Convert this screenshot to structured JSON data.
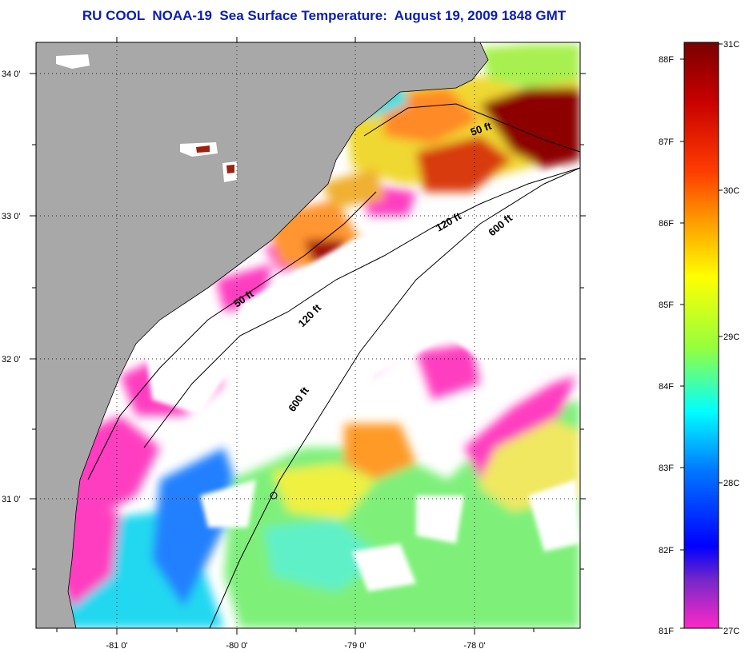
{
  "title": "RU COOL  NOAA-19  Sea Surface Temperature:  August 19, 2009 1848 GMT",
  "map": {
    "lat_labels": [
      "34 0'",
      "33 0'",
      "32 0'",
      "31 0'"
    ],
    "lon_labels": [
      "-81 0'",
      "-80 0'",
      "-79 0'",
      "-78 0'"
    ],
    "contour_labels": [
      "50 ft",
      "120 ft",
      "600 ft",
      "50 ft",
      "120 ft",
      "600 ft"
    ],
    "colors": {
      "land": "#a8a8a8",
      "cloud": "#ffffff",
      "warmest": "#8c0000",
      "coolest": "#ff3cc8"
    }
  },
  "colorbar": {
    "fahrenheit_labels": [
      "88F",
      "87F",
      "86F",
      "85F",
      "84F",
      "83F",
      "82F",
      "81F"
    ],
    "celsius_labels": [
      "31C",
      "30C",
      "29C",
      "28C",
      "27C"
    ],
    "stops": [
      "#7a0000",
      "#c80000",
      "#ff3c00",
      "#ff9600",
      "#ffff00",
      "#96ff3c",
      "#00ffff",
      "#0078ff",
      "#0000ff",
      "#7a28c8",
      "#ff28c8"
    ]
  }
}
